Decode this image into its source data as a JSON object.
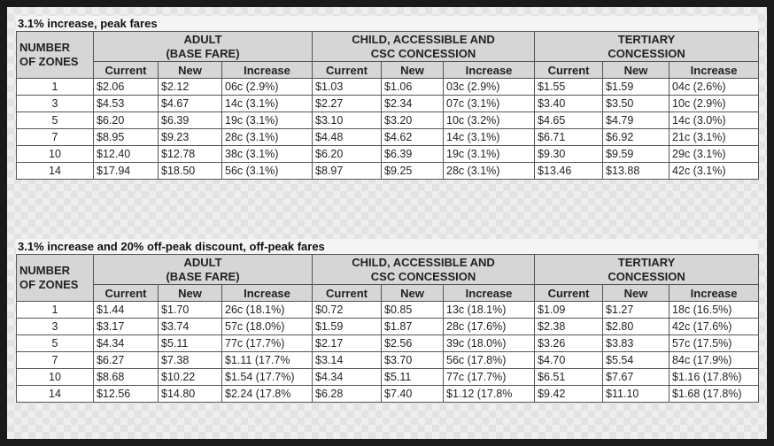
{
  "tables": [
    {
      "title": "3.1% increase, peak fares",
      "group_headers": [
        [
          "NUMBER",
          "OF ZONES"
        ],
        [
          "ADULT",
          "(BASE FARE)"
        ],
        [
          "CHILD, ACCESSIBLE AND",
          "CSC CONCESSION"
        ],
        [
          "TERTIARY",
          "CONCESSION"
        ]
      ],
      "sub_headers": [
        "Current",
        "New",
        "Increase",
        "Current",
        "New",
        "Increase",
        "Current",
        "New",
        "Increase"
      ],
      "rows": [
        [
          "1",
          "$2.06",
          "$2.12",
          "06c (2.9%)",
          "$1.03",
          "$1.06",
          "03c (2.9%)",
          "$1.55",
          "$1.59",
          "04c (2.6%)"
        ],
        [
          "3",
          "$4.53",
          "$4.67",
          "14c (3.1%)",
          "$2.27",
          "$2.34",
          "07c (3.1%)",
          "$3.40",
          "$3.50",
          "10c (2.9%)"
        ],
        [
          "5",
          "$6.20",
          "$6.39",
          "19c (3.1%)",
          "$3.10",
          "$3.20",
          "10c (3.2%)",
          "$4.65",
          "$4.79",
          "14c (3.0%)"
        ],
        [
          "7",
          "$8.95",
          "$9.23",
          "28c (3.1%)",
          "$4.48",
          "$4.62",
          "14c (3.1%)",
          "$6.71",
          "$6.92",
          "21c (3.1%)"
        ],
        [
          "10",
          "$12.40",
          "$12.78",
          "38c (3.1%)",
          "$6.20",
          "$6.39",
          "19c (3.1%)",
          "$9.30",
          "$9.59",
          "29c (3.1%)"
        ],
        [
          "14",
          "$17.94",
          "$18.50",
          "56c (3.1%)",
          "$8.97",
          "$9.25",
          "28c (3.1%)",
          "$13.46",
          "$13.88",
          "42c (3.1%)"
        ]
      ]
    },
    {
      "title": "3.1% increase and 20% off-peak discount, off-peak fares",
      "group_headers": [
        [
          "NUMBER",
          "OF ZONES"
        ],
        [
          "ADULT",
          "(BASE FARE)"
        ],
        [
          "CHILD, ACCESSIBLE AND",
          "CSC CONCESSION"
        ],
        [
          "TERTIARY",
          "CONCESSION"
        ]
      ],
      "sub_headers": [
        "Current",
        "New",
        "Increase",
        "Current",
        "New",
        "Increase",
        "Current",
        "New",
        "Increase"
      ],
      "rows": [
        [
          "1",
          "$1.44",
          "$1.70",
          "26c (18.1%)",
          "$0.72",
          "$0.85",
          "13c (18.1%)",
          "$1.09",
          "$1.27",
          "18c (16.5%)"
        ],
        [
          "3",
          "$3.17",
          "$3.74",
          "57c (18.0%)",
          "$1.59",
          "$1.87",
          "28c (17.6%)",
          "$2.38",
          "$2.80",
          "42c (17.6%)"
        ],
        [
          "5",
          "$4.34",
          "$5.11",
          "77c (17.7%)",
          "$2.17",
          "$2.56",
          "39c (18.0%)",
          "$3.26",
          "$3.83",
          "57c (17.5%)"
        ],
        [
          "7",
          "$6.27",
          "$7.38",
          "$1.11 (17.7%",
          "$3.14",
          "$3.70",
          "56c (17.8%)",
          "$4.70",
          "$5.54",
          "84c (17.9%)"
        ],
        [
          "10",
          "$8.68",
          "$10.22",
          "$1.54 (17.7%)",
          "$4.34",
          "$5.11",
          "77c (17.7%)",
          "$6.51",
          "$7.67",
          "$1.16 (17.8%)"
        ],
        [
          "14",
          "$12.56",
          "$14.80",
          "$2.24 (17.8%",
          "$6.28",
          "$7.40",
          "$1.12 (17.8%",
          "$9.42",
          "$11.10",
          "$1.68 (17.8%)"
        ]
      ]
    }
  ]
}
